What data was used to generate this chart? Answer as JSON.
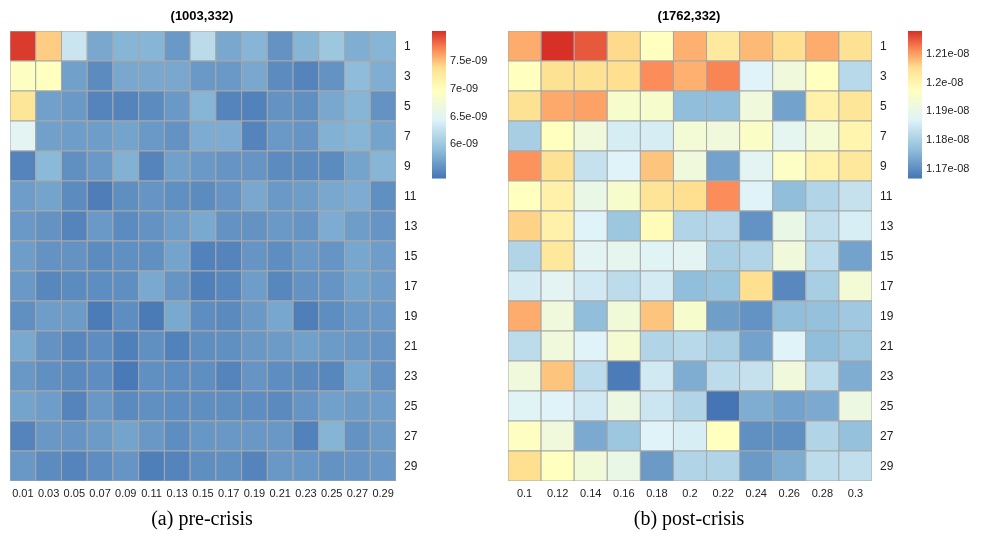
{
  "chart_data": [
    {
      "type": "heatmap",
      "title": "(1003,332)",
      "annotations": [
        "(a) pre-crisis"
      ],
      "categories": [
        "0.01",
        "0.03",
        "0.05",
        "0.07",
        "0.09",
        "0.11",
        "0.13",
        "0.15",
        "0.17",
        "0.19",
        "0.21",
        "0.23",
        "0.25",
        "0.27",
        "0.29"
      ],
      "y_categories": [
        "1",
        "3",
        "5",
        "7",
        "9",
        "11",
        "13",
        "15",
        "17",
        "19",
        "21",
        "23",
        "25",
        "27",
        "29"
      ],
      "cells": [
        [
          8e-09,
          7.45e-09,
          6.3e-09,
          5.75e-09,
          5.85e-09,
          5.85e-09,
          5.65e-09,
          6.2e-09,
          5.75e-09,
          5.85e-09,
          5.6e-09,
          5.85e-09,
          6e-09,
          5.8e-09,
          5.85e-09
        ],
        [
          6.95e-09,
          6.98e-09,
          5.7e-09,
          5.55e-09,
          5.75e-09,
          5.75e-09,
          5.75e-09,
          5.65e-09,
          5.65e-09,
          5.75e-09,
          5.55e-09,
          5.5e-09,
          5.6e-09,
          5.9e-09,
          5.8e-09
        ],
        [
          7.3e-09,
          5.7e-09,
          5.65e-09,
          5.5e-09,
          5.5e-09,
          5.55e-09,
          5.65e-09,
          5.85e-09,
          5.5e-09,
          5.48e-09,
          5.6e-09,
          5.58e-09,
          5.75e-09,
          5.85e-09,
          5.6e-09
        ],
        [
          6.5e-09,
          5.7e-09,
          5.68e-09,
          5.68e-09,
          5.72e-09,
          5.65e-09,
          5.6e-09,
          5.78e-09,
          5.78e-09,
          5.5e-09,
          5.65e-09,
          5.62e-09,
          5.82e-09,
          5.85e-09,
          5.72e-09
        ],
        [
          5.5e-09,
          5.88e-09,
          5.58e-09,
          5.65e-09,
          5.82e-09,
          5.5e-09,
          5.7e-09,
          5.65e-09,
          5.62e-09,
          5.62e-09,
          5.55e-09,
          5.55e-09,
          5.55e-09,
          5.72e-09,
          5.85e-09
        ],
        [
          5.68e-09,
          5.72e-09,
          5.55e-09,
          5.45e-09,
          5.57e-09,
          5.62e-09,
          5.58e-09,
          5.55e-09,
          5.62e-09,
          5.75e-09,
          5.65e-09,
          5.68e-09,
          5.75e-09,
          5.78e-09,
          5.58e-09
        ],
        [
          5.65e-09,
          5.6e-09,
          5.5e-09,
          5.65e-09,
          5.55e-09,
          5.6e-09,
          5.68e-09,
          5.76e-09,
          5.6e-09,
          5.6e-09,
          5.65e-09,
          5.62e-09,
          5.78e-09,
          5.68e-09,
          5.62e-09
        ],
        [
          5.68e-09,
          5.6e-09,
          5.6e-09,
          5.55e-09,
          5.58e-09,
          5.58e-09,
          5.72e-09,
          5.48e-09,
          5.5e-09,
          5.62e-09,
          5.56e-09,
          5.65e-09,
          5.62e-09,
          5.74e-09,
          5.68e-09
        ],
        [
          5.65e-09,
          5.52e-09,
          5.55e-09,
          5.56e-09,
          5.57e-09,
          5.76e-09,
          5.62e-09,
          5.47e-09,
          5.52e-09,
          5.68e-09,
          5.52e-09,
          5.6e-09,
          5.62e-09,
          5.72e-09,
          5.68e-09
        ],
        [
          5.58e-09,
          5.68e-09,
          5.66e-09,
          5.44e-09,
          5.56e-09,
          5.43e-09,
          5.76e-09,
          5.56e-09,
          5.54e-09,
          5.65e-09,
          5.74e-09,
          5.46e-09,
          5.56e-09,
          5.65e-09,
          5.65e-09
        ],
        [
          5.76e-09,
          5.6e-09,
          5.52e-09,
          5.56e-09,
          5.47e-09,
          5.58e-09,
          5.48e-09,
          5.57e-09,
          5.58e-09,
          5.64e-09,
          5.66e-09,
          5.7e-09,
          5.66e-09,
          5.64e-09,
          5.62e-09
        ],
        [
          5.64e-09,
          5.58e-09,
          5.54e-09,
          5.56e-09,
          5.42e-09,
          5.58e-09,
          5.56e-09,
          5.57e-09,
          5.5e-09,
          5.62e-09,
          5.56e-09,
          5.54e-09,
          5.52e-09,
          5.74e-09,
          5.6e-09
        ],
        [
          5.72e-09,
          5.68e-09,
          5.5e-09,
          5.64e-09,
          5.54e-09,
          5.58e-09,
          5.56e-09,
          5.57e-09,
          5.57e-09,
          5.56e-09,
          5.54e-09,
          5.62e-09,
          5.7e-09,
          5.66e-09,
          5.68e-09
        ],
        [
          5.5e-09,
          5.64e-09,
          5.62e-09,
          5.66e-09,
          5.72e-09,
          5.64e-09,
          5.56e-09,
          5.63e-09,
          5.64e-09,
          5.64e-09,
          5.64e-09,
          5.48e-09,
          5.84e-09,
          5.6e-09,
          5.66e-09
        ],
        [
          5.64e-09,
          5.55e-09,
          5.5e-09,
          5.56e-09,
          5.62e-09,
          5.46e-09,
          5.5e-09,
          5.57e-09,
          5.58e-09,
          5.5e-09,
          5.64e-09,
          5.63e-09,
          5.6e-09,
          5.62e-09,
          5.64e-09
        ]
      ],
      "clim": [
        5.39e-09,
        8.04e-09
      ],
      "cticks": [
        {
          "value": 6e-09,
          "label": "6e-09"
        },
        {
          "value": 6.5e-09,
          "label": "6.5e-09"
        },
        {
          "value": 7e-09,
          "label": "7e-09"
        },
        {
          "value": 7.5e-09,
          "label": "7.5e-09"
        }
      ]
    },
    {
      "type": "heatmap",
      "title": "(1762,332)",
      "annotations": [
        "(b) post-crisis"
      ],
      "categories": [
        "0.1",
        "0.12",
        "0.14",
        "0.16",
        "0.18",
        "0.2",
        "0.22",
        "0.24",
        "0.26",
        "0.28",
        "0.3"
      ],
      "y_categories": [
        "1",
        "3",
        "5",
        "7",
        "9",
        "11",
        "13",
        "15",
        "17",
        "19",
        "21",
        "23",
        "25",
        "27",
        "29"
      ],
      "cells": [
        [
          1.209e-08,
          1.2179e-08,
          1.215e-08,
          1.2056e-08,
          1.1975e-08,
          1.2087e-08,
          1.2026e-08,
          1.208e-08,
          1.2051e-08,
          1.209e-08,
          1.2046e-08
        ],
        [
          1.1975e-08,
          1.2046e-08,
          1.2046e-08,
          1.2051e-08,
          1.2113e-08,
          1.2087e-08,
          1.2118e-08,
          1.1872e-08,
          1.1924e-08,
          1.1975e-08,
          1.1821e-08
        ],
        [
          1.2046e-08,
          1.2092e-08,
          1.2097e-08,
          1.1949e-08,
          1.1949e-08,
          1.177e-08,
          1.177e-08,
          1.1924e-08,
          1.173e-08,
          1.201e-08,
          1.2036e-08
        ],
        [
          1.18e-08,
          1.1975e-08,
          1.1924e-08,
          1.186e-08,
          1.186e-08,
          1.1934e-08,
          1.1924e-08,
          1.196e-08,
          1.1888e-08,
          1.1934e-08,
          1.2e-08
        ],
        [
          1.2108e-08,
          1.2046e-08,
          1.1837e-08,
          1.1872e-08,
          1.2072e-08,
          1.1924e-08,
          1.173e-08,
          1.1883e-08,
          1.1964e-08,
          1.2005e-08,
          1.2031e-08
        ],
        [
          1.1975e-08,
          1.201e-08,
          1.1903e-08,
          1.1949e-08,
          1.2041e-08,
          1.2051e-08,
          1.2113e-08,
          1.1872e-08,
          1.177e-08,
          1.1811e-08,
          1.1837e-08
        ],
        [
          1.2061e-08,
          1.201e-08,
          1.1872e-08,
          1.1786e-08,
          1.1985e-08,
          1.1811e-08,
          1.1816e-08,
          1.1709e-08,
          1.1903e-08,
          1.1832e-08,
          1.1862e-08
        ],
        [
          1.1811e-08,
          1.2031e-08,
          1.1883e-08,
          1.1893e-08,
          1.1877e-08,
          1.1883e-08,
          1.18e-08,
          1.1811e-08,
          1.1924e-08,
          1.1826e-08,
          1.173e-08
        ],
        [
          1.1857e-08,
          1.1883e-08,
          1.1852e-08,
          1.1826e-08,
          1.1857e-08,
          1.177e-08,
          1.178e-08,
          1.2051e-08,
          1.1694e-08,
          1.18e-08,
          1.1934e-08
        ],
        [
          1.209e-08,
          1.1924e-08,
          1.177e-08,
          1.1929e-08,
          1.2072e-08,
          1.1949e-08,
          1.1724e-08,
          1.1709e-08,
          1.177e-08,
          1.1775e-08,
          1.179e-08
        ],
        [
          1.1826e-08,
          1.1924e-08,
          1.1872e-08,
          1.1939e-08,
          1.1811e-08,
          1.1821e-08,
          1.18e-08,
          1.173e-08,
          1.1872e-08,
          1.177e-08,
          1.1786e-08
        ],
        [
          1.1924e-08,
          1.2072e-08,
          1.1826e-08,
          1.1678e-08,
          1.1852e-08,
          1.1745e-08,
          1.1826e-08,
          1.1837e-08,
          1.1924e-08,
          1.1826e-08,
          1.1745e-08
        ],
        [
          1.1877e-08,
          1.1872e-08,
          1.1852e-08,
          1.1913e-08,
          1.1847e-08,
          1.1811e-08,
          1.1668e-08,
          1.1745e-08,
          1.173e-08,
          1.174e-08,
          1.1913e-08
        ],
        [
          1.197e-08,
          1.1924e-08,
          1.174e-08,
          1.1786e-08,
          1.1872e-08,
          1.1862e-08,
          1.1975e-08,
          1.1704e-08,
          1.1704e-08,
          1.1811e-08,
          1.1775e-08
        ],
        [
          1.2051e-08,
          1.1975e-08,
          1.1929e-08,
          1.1903e-08,
          1.1719e-08,
          1.1811e-08,
          1.1811e-08,
          1.1719e-08,
          1.1745e-08,
          1.1826e-08,
          1.1832e-08
        ]
      ],
      "clim": [
        1.1668e-08,
        1.2179e-08
      ],
      "cticks": [
        {
          "value": 1.17e-08,
          "label": "1.17e-08"
        },
        {
          "value": 1.18e-08,
          "label": "1.18e-08"
        },
        {
          "value": 1.19e-08,
          "label": "1.19e-08"
        },
        {
          "value": 1.2e-08,
          "label": "1.2e-08"
        },
        {
          "value": 1.21e-08,
          "label": "1.21e-08"
        }
      ]
    }
  ]
}
